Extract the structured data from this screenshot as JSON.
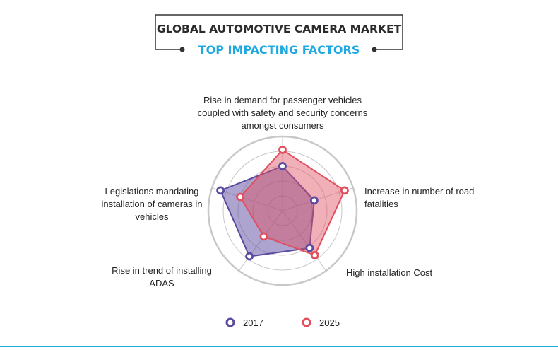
{
  "header": {
    "title": "GLOBAL AUTOMOTIVE CAMERA MARKET",
    "subtitle": "TOP IMPACTING FACTORS"
  },
  "colors": {
    "series_2017": "#5b4aa0",
    "series_2025": "#e0505f",
    "grid": "#c8c8c8",
    "title_accent": "#1fa9e1",
    "bottom_rule": "#1fa9e1"
  },
  "chart_data": {
    "type": "radar",
    "title": "TOP IMPACTING FACTORS",
    "axes": [
      [
        "Rise in demand for passenger vehicles",
        "coupled with safety and security concerns",
        "amongst consumers"
      ],
      [
        "Increase in number of road",
        "fatalities"
      ],
      [
        "High installation Cost"
      ],
      [
        "Rise in trend of installing",
        "ADAS"
      ],
      [
        "Legislations mandating",
        "installation of cameras in",
        "vehicles"
      ]
    ],
    "rmax": 100,
    "grid_levels": [
      20,
      40,
      60,
      80,
      100
    ],
    "grid": true,
    "legend_position": "bottom-center",
    "series": [
      {
        "name": "2017",
        "values": [
          60,
          45,
          62,
          76,
          88
        ]
      },
      {
        "name": "2025",
        "values": [
          82,
          88,
          74,
          43,
          60
        ]
      }
    ]
  }
}
